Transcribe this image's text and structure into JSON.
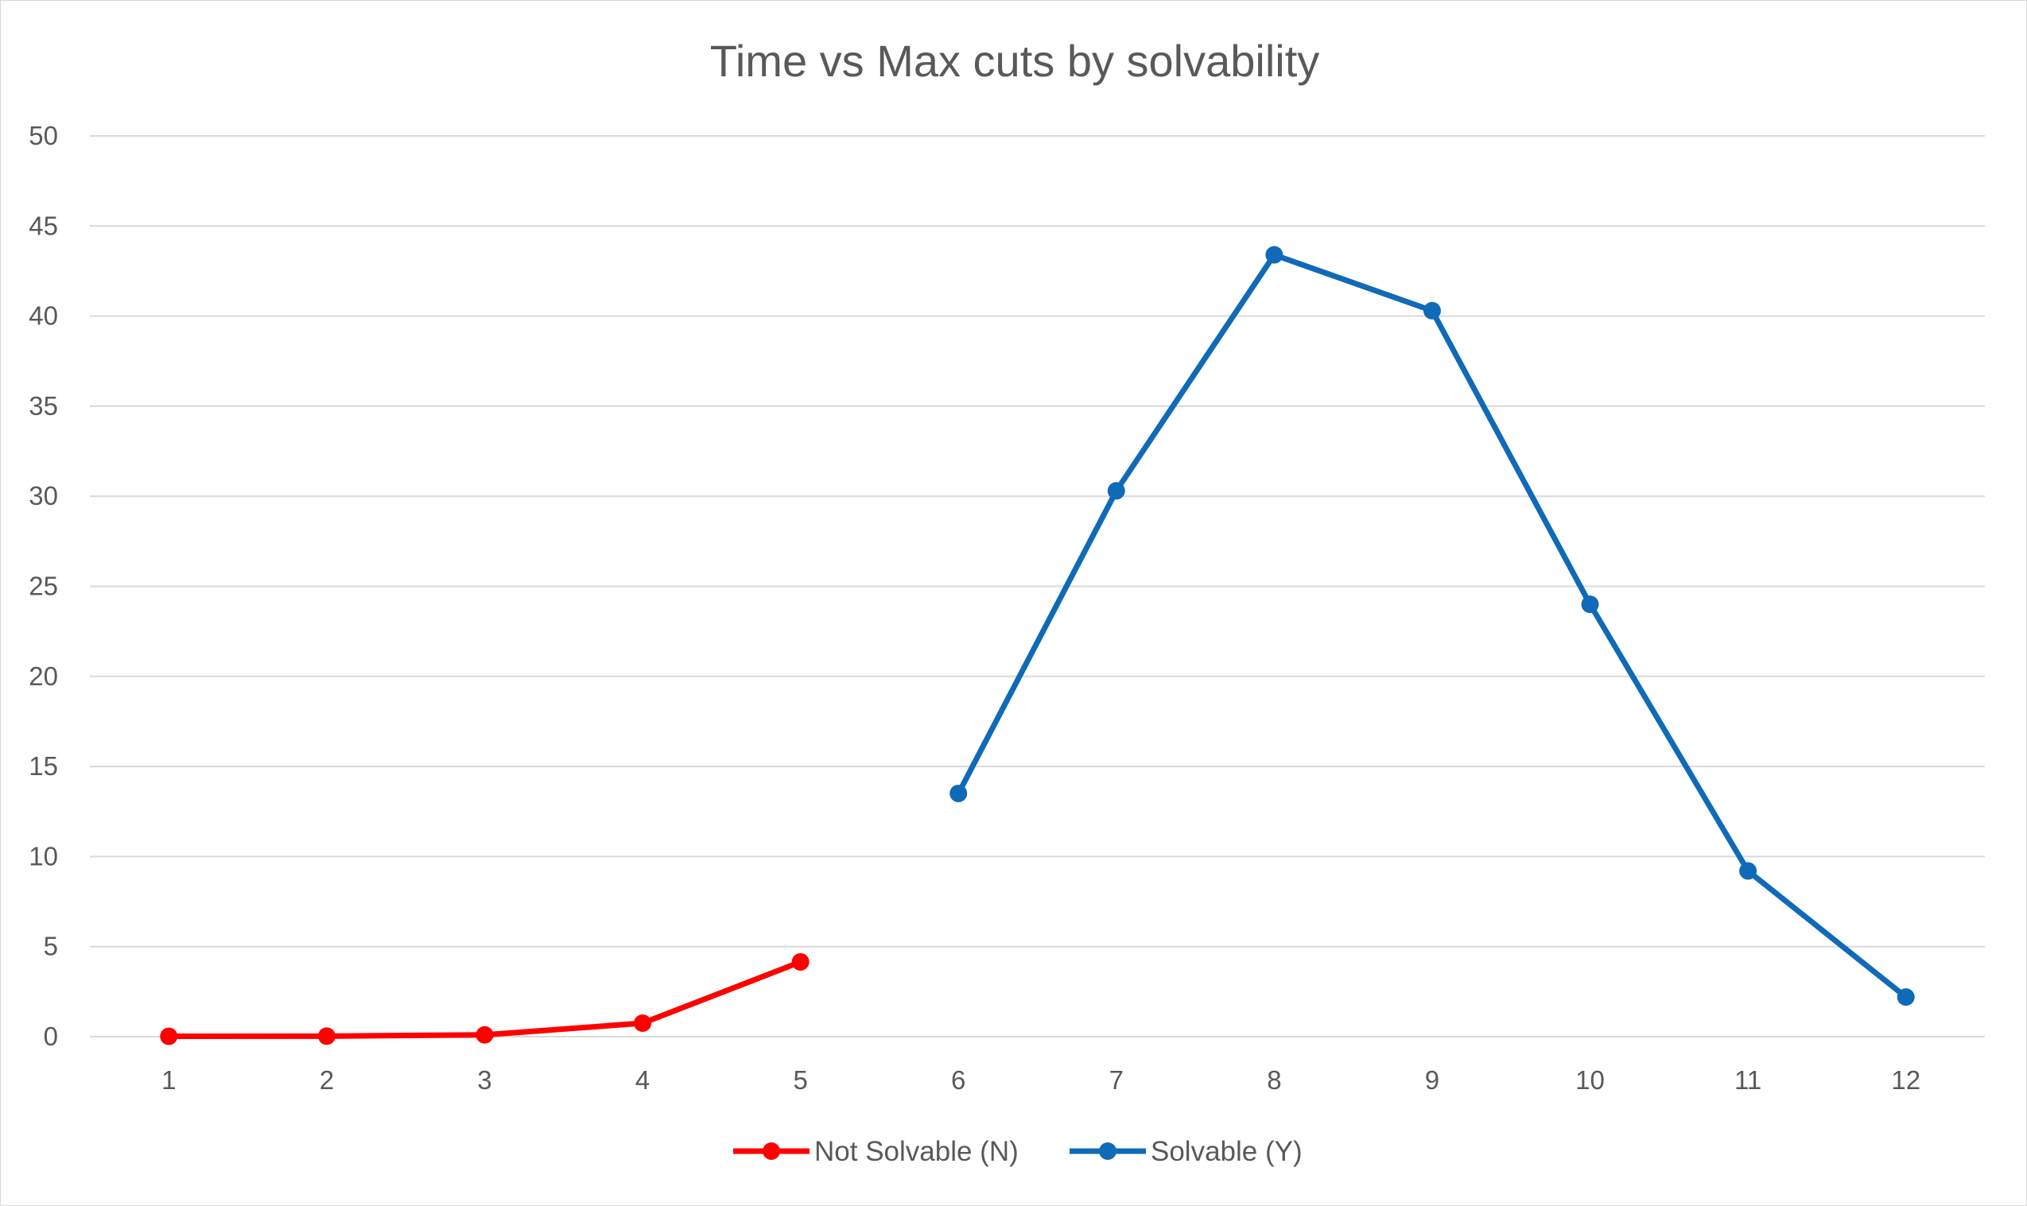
{
  "chart_data": {
    "type": "line",
    "title": "Time vs Max cuts by solvability",
    "xlabel": "",
    "ylabel": "",
    "categories": [
      "1",
      "2",
      "3",
      "4",
      "5",
      "6",
      "7",
      "8",
      "9",
      "10",
      "11",
      "12"
    ],
    "ylim": [
      0,
      50
    ],
    "yticks": [
      0,
      5,
      10,
      15,
      20,
      25,
      30,
      35,
      40,
      45,
      50
    ],
    "grid": "horizontal",
    "legend": "bottom",
    "series": [
      {
        "name": "Not Solvable (N)",
        "color": "#ff0000",
        "values": [
          0.02,
          0.03,
          0.1,
          0.75,
          4.15,
          null,
          null,
          null,
          null,
          null,
          null,
          null
        ]
      },
      {
        "name": "Solvable (Y)",
        "color": "#0f6ab8",
        "values": [
          null,
          null,
          null,
          null,
          null,
          13.5,
          30.3,
          43.4,
          40.3,
          24.0,
          9.2,
          2.2
        ]
      }
    ]
  }
}
